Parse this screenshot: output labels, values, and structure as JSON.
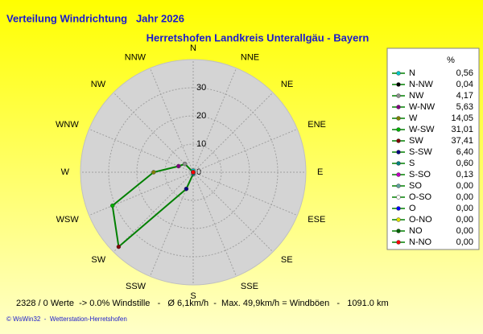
{
  "chart_data": {
    "type": "radar",
    "title": "Verteilung Windrichtung   Jahr 2026",
    "subtitle": "Herretshofen Landkreis Unterallgäu - Bayern",
    "angular_direction": "counterclockwise",
    "categories": [
      "N",
      "NNW",
      "NW",
      "WNW",
      "W",
      "WSW",
      "SW",
      "SSW",
      "S",
      "SSE",
      "SE",
      "ESE",
      "E",
      "ENE",
      "NE",
      "NNE"
    ],
    "values": [
      0.56,
      0.04,
      4.17,
      5.63,
      14.05,
      31.01,
      37.41,
      6.4,
      0.6,
      0.13,
      0,
      0,
      0,
      0,
      0,
      0
    ],
    "value_labels": [
      "0,56",
      "0,04",
      "4,17",
      "5,63",
      "14,05",
      "31,01",
      "37,41",
      "6,40",
      "0,60",
      "0,13",
      "0,00",
      "0,00",
      "0,00",
      "0,00",
      "0,00",
      "0,00"
    ],
    "legend_names": [
      "N",
      "N-NW",
      "NW",
      "W-NW",
      "W",
      "W-SW",
      "SW",
      "S-SW",
      "S",
      "S-SO",
      "SO",
      "O-SO",
      "O",
      "O-NO",
      "NO",
      "N-NO"
    ],
    "legend_header": "%",
    "point_colors": [
      "#00c8c8",
      "#000000",
      "#909090",
      "#800080",
      "#808000",
      "#00b000",
      "#800000",
      "#000080",
      "#008080",
      "#c000c0",
      "#60a0a0",
      "#ffffff",
      "#0000ff",
      "#e0e000",
      "#006000",
      "#ff0000"
    ],
    "line_color": "#008000",
    "rlim": [
      0,
      40
    ],
    "rticks": [
      0,
      10,
      20,
      30
    ],
    "footer": "2328 / 0 Werte  -> 0.0% Windstille   -   Ø 6,1km/h  -  Max. 49,9km/h = Windböen   -   1091.0 km",
    "credit": "© WsWin32  -  Wetterstation-Herretshofen"
  }
}
